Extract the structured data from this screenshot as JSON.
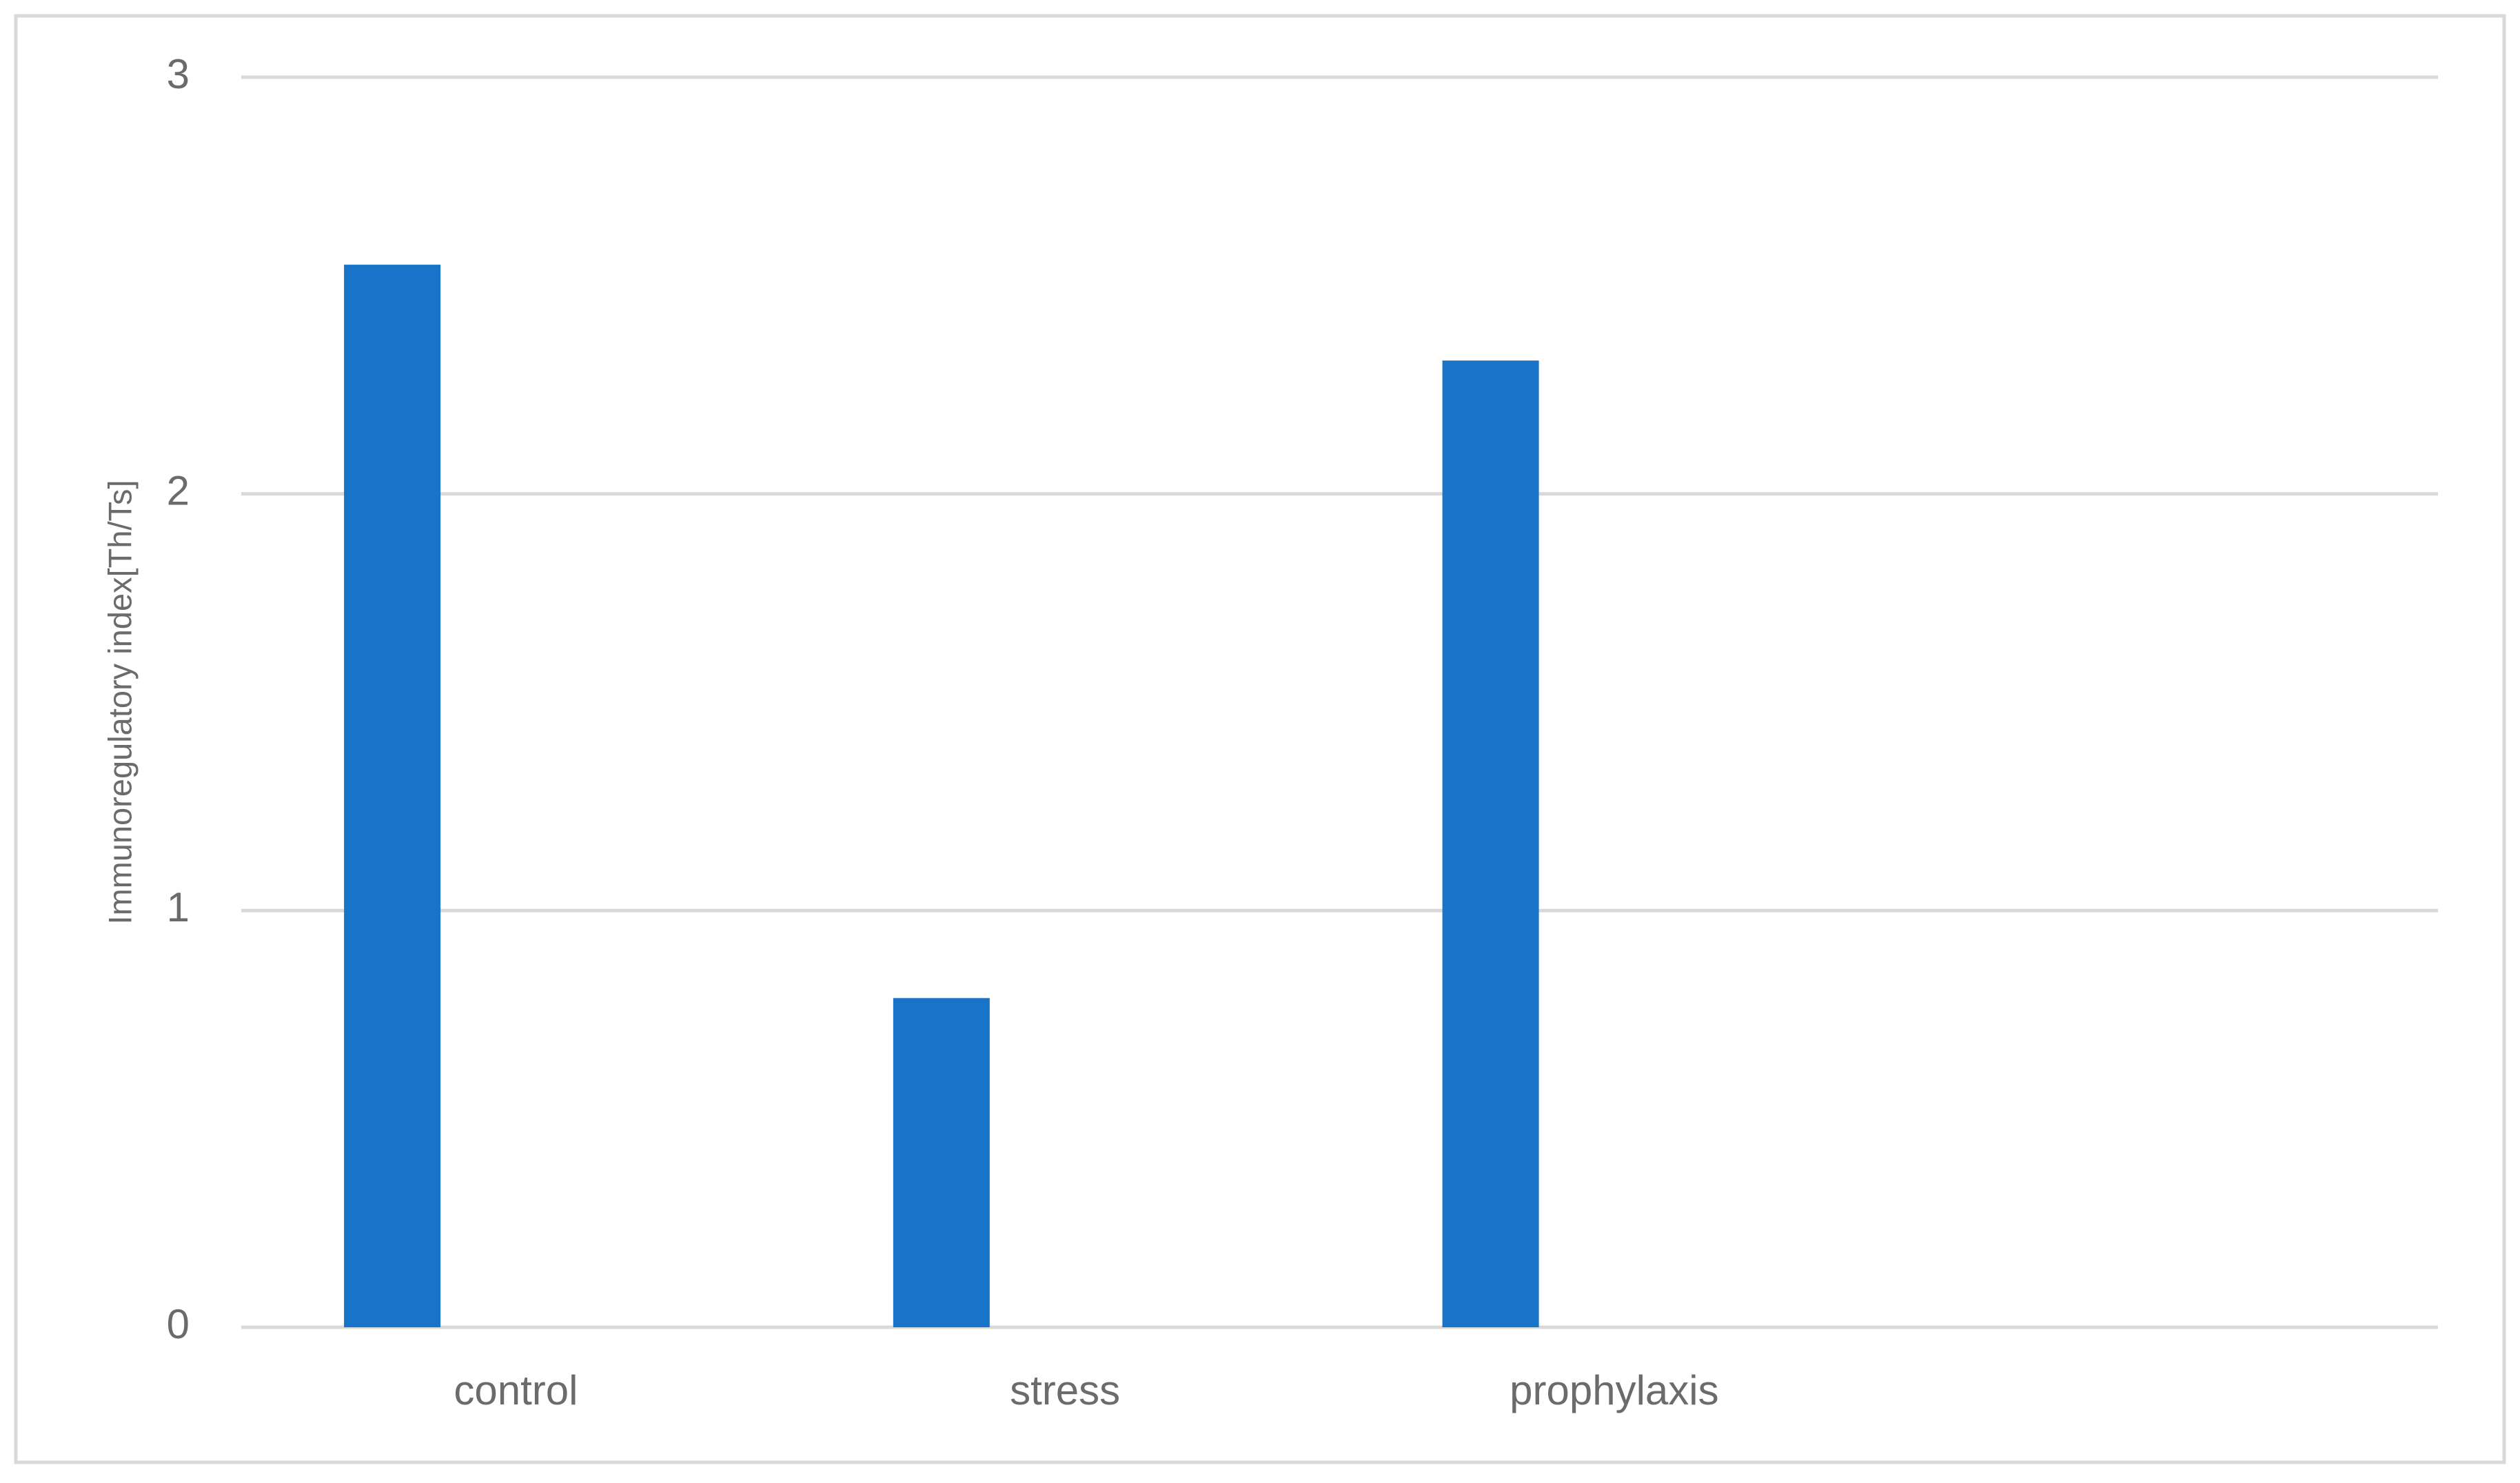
{
  "chart_data": {
    "type": "bar",
    "y_label": "Immunoregulatory index[Th/Ts]",
    "categories": [
      "control",
      "stress",
      "prophylaxis",
      null
    ],
    "values": [
      2.55,
      0.79,
      2.32,
      null
    ],
    "color": "#1874c9",
    "ylim": [
      0,
      3
    ],
    "yticks": [
      0,
      1,
      2,
      3
    ],
    "grid": true
  }
}
